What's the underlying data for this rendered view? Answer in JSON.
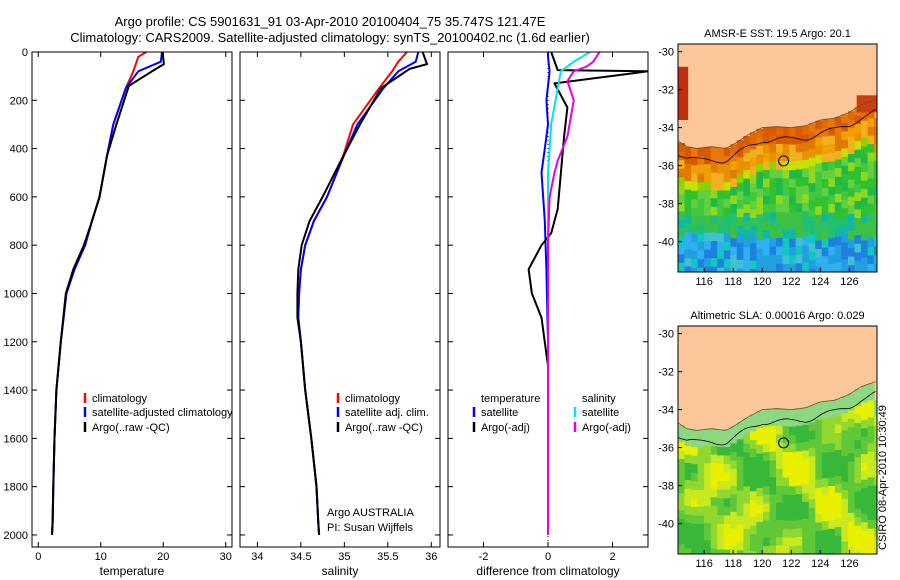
{
  "header": {
    "title_line1": "Argo profile: CS 5901631_91 03-Apr-2010 20100404_75 35.747S 121.47E",
    "title_line2": "Climatology: CARS2009. Satellite-adjusted climatology: synTS_20100402.nc (1.6d earlier)"
  },
  "footer": {
    "stamp": "CSIRO 08-Apr-2010 10:30:49"
  },
  "colors": {
    "climatology": "#ff0000",
    "satellite": "#0000ff",
    "argo": "#000000",
    "salinity_sat": "#00e5e5",
    "salinity_argo": "#e600e6",
    "land": "#fcc89b"
  },
  "chart_data": [
    {
      "type": "line",
      "xlabel": "temperature",
      "xlim": [
        -1,
        31
      ],
      "ylim": [
        0,
        2050
      ],
      "xticks": [
        0,
        10,
        20,
        30
      ],
      "yticks": [
        0,
        200,
        400,
        600,
        800,
        1000,
        1200,
        1400,
        1600,
        1800,
        2000
      ],
      "legend": [
        "climatology",
        "satellite-adjusted climatology",
        "Argo(..raw -QC)"
      ],
      "series": [
        {
          "name": "climatology",
          "color": "#ff0000",
          "x": [
            17.3,
            16.0,
            15.2,
            14.0,
            12.0,
            11.0,
            9.8,
            8.6,
            7.5,
            5.8,
            4.5,
            3.6,
            2.9,
            2.6,
            2.4,
            2.3,
            2.2
          ],
          "y": [
            0,
            20,
            80,
            150,
            300,
            430,
            600,
            700,
            800,
            900,
            1000,
            1200,
            1400,
            1600,
            1800,
            1950,
            2000
          ]
        },
        {
          "name": "satellite-adjusted climatology",
          "color": "#0000ff",
          "x": [
            19.8,
            19.6,
            16.0,
            14.0,
            12.0,
            11.0,
            9.8,
            8.6,
            7.5,
            5.8,
            4.5,
            3.6,
            2.9,
            2.6,
            2.4,
            2.3,
            2.2
          ],
          "y": [
            0,
            40,
            80,
            150,
            300,
            430,
            600,
            700,
            800,
            900,
            1000,
            1200,
            1400,
            1600,
            1800,
            1950,
            2000
          ]
        },
        {
          "name": "Argo(..raw -QC)",
          "color": "#000000",
          "x": [
            19.9,
            20.1,
            18.5,
            14.5,
            12.5,
            11.0,
            9.8,
            8.6,
            7.3,
            5.6,
            4.4,
            3.6,
            2.9,
            2.6,
            2.4,
            2.3,
            2.2
          ],
          "y": [
            0,
            50,
            75,
            140,
            300,
            430,
            600,
            700,
            800,
            900,
            1000,
            1200,
            1400,
            1600,
            1800,
            1950,
            2000
          ]
        }
      ]
    },
    {
      "type": "line",
      "xlabel": "salinity",
      "xlim": [
        33.8,
        36.1
      ],
      "ylim": [
        0,
        2050
      ],
      "xticks": [
        34,
        34.5,
        35,
        35.5,
        36
      ],
      "legend": [
        "climatology",
        "satellite adj. clim.",
        "Argo(..raw -QC)"
      ],
      "annotations": [
        "Argo AUSTRALIA",
        "PI: Susan Wijffels"
      ],
      "series": [
        {
          "name": "climatology",
          "color": "#ff0000",
          "x": [
            35.72,
            35.62,
            35.55,
            35.4,
            35.1,
            34.97,
            34.8,
            34.65,
            34.55,
            34.5,
            34.48,
            34.47,
            34.5,
            34.55,
            34.62,
            34.68,
            34.7,
            34.71
          ],
          "y": [
            0,
            40,
            80,
            150,
            300,
            450,
            600,
            700,
            800,
            900,
            1000,
            1100,
            1200,
            1400,
            1600,
            1800,
            1950,
            2000
          ]
        },
        {
          "name": "satellite adj. clim.",
          "color": "#0000ff",
          "x": [
            35.85,
            35.82,
            35.62,
            35.45,
            35.15,
            34.97,
            34.8,
            34.65,
            34.55,
            34.5,
            34.48,
            34.47,
            34.5,
            34.55,
            34.62,
            34.68,
            34.7,
            34.71
          ],
          "y": [
            0,
            40,
            80,
            150,
            300,
            450,
            600,
            700,
            800,
            900,
            1000,
            1100,
            1200,
            1400,
            1600,
            1800,
            1950,
            2000
          ]
        },
        {
          "name": "Argo(..raw -QC)",
          "color": "#000000",
          "x": [
            35.9,
            35.95,
            35.75,
            35.42,
            35.18,
            34.96,
            34.75,
            34.6,
            34.51,
            34.47,
            34.46,
            34.46,
            34.5,
            34.55,
            34.62,
            34.68,
            34.7,
            34.71
          ],
          "y": [
            0,
            50,
            70,
            150,
            300,
            450,
            600,
            700,
            800,
            900,
            1000,
            1100,
            1200,
            1400,
            1600,
            1800,
            1950,
            2000
          ]
        }
      ]
    },
    {
      "type": "line",
      "xlabel": "difference from climatology",
      "xlim": [
        -3.1,
        3.1
      ],
      "ylim": [
        0,
        2050
      ],
      "xticks": [
        -2,
        0,
        2
      ],
      "legend": [
        "temperature",
        "satellite",
        "Argo(-adj)",
        "salinity",
        "satellite",
        "Argo(-adj)"
      ],
      "series": [
        {
          "name": "satellite",
          "color": "#0000ff",
          "x": [
            0.0,
            0.0,
            0.05,
            -0.05,
            0.0,
            -0.1,
            -0.2,
            -0.1,
            -0.05,
            0.0,
            0.0,
            0.0,
            0.0
          ],
          "y": [
            0,
            20,
            80,
            200,
            300,
            400,
            500,
            700,
            900,
            1200,
            1500,
            1800,
            2000
          ]
        },
        {
          "name": "Argo(-adj)",
          "color": "#000000",
          "x": [
            0.1,
            0.3,
            3.1,
            0.2,
            0.6,
            0.5,
            0.4,
            0.3,
            0.1,
            -0.2,
            -0.6,
            -0.5,
            -0.2,
            0.0,
            0.0,
            0.0
          ],
          "y": [
            0,
            75,
            80,
            130,
            230,
            350,
            500,
            650,
            750,
            800,
            900,
            1000,
            1100,
            1300,
            1600,
            2000
          ]
        },
        {
          "name": "satellite",
          "color": "#00e5e5",
          "x": [
            1.3,
            0.8,
            0.4,
            0.3,
            0.1,
            0.0,
            0.0,
            0.0,
            0.0
          ],
          "y": [
            0,
            40,
            80,
            150,
            300,
            500,
            800,
            1300,
            2000
          ]
        },
        {
          "name": "Argo(-adj)",
          "color": "#e600e6",
          "x": [
            1.6,
            1.4,
            1.2,
            0.8,
            0.6,
            0.8,
            0.6,
            0.3,
            0.2,
            0.05,
            0.0,
            0.0
          ],
          "y": [
            0,
            40,
            60,
            80,
            120,
            200,
            350,
            450,
            500,
            600,
            800,
            2000
          ]
        }
      ]
    }
  ],
  "maps": [
    {
      "title": "AMSR-E SST: 19.5 Argo: 20.1",
      "xticks": [
        "116",
        "118",
        "120",
        "122",
        "124",
        "126"
      ],
      "yticks": [
        "-30",
        "-32",
        "-34",
        "-36",
        "-38",
        "-40"
      ],
      "float_position": {
        "lon": 121.47,
        "lat": -35.75
      }
    },
    {
      "title": "Altimetric SLA: 0.00016 Argo: 0.029",
      "xticks": [
        "116",
        "118",
        "120",
        "122",
        "124",
        "126"
      ],
      "yticks": [
        "-30",
        "-32",
        "-34",
        "-36",
        "-38",
        "-40"
      ],
      "float_position": {
        "lon": 121.47,
        "lat": -35.75
      }
    }
  ]
}
